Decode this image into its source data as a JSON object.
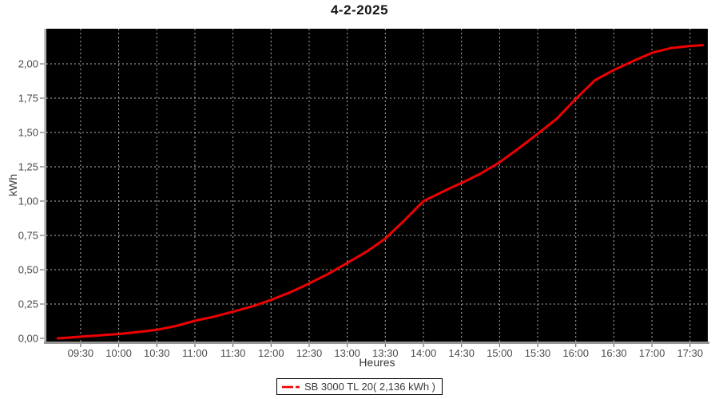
{
  "title": "4-2-2025",
  "colors": {
    "series": "#ee0000",
    "plot_background": "#000000",
    "grid": "#b0b0b0",
    "axis_line": "#979797",
    "tick_mark": "#555555",
    "tick_label": "#4a4a4a",
    "text": "#3a3a3a",
    "title_color": "#151515",
    "page_background": "#ffffff"
  },
  "legend": {
    "label": "SB 3000 TL 20( 2,136 kWh )",
    "total_kwh_display": "2,136 kWh"
  },
  "chart_data": {
    "type": "line",
    "title": "4-2-2025",
    "xlabel": "Heures",
    "ylabel": "kWh",
    "grid": true,
    "legend_position": "bottom",
    "plot_background": "black",
    "xlim_time": [
      "09:03",
      "17:44"
    ],
    "ylim": [
      -0.02,
      2.26
    ],
    "x_ticks": [
      "09:30",
      "10:00",
      "10:30",
      "11:00",
      "11:30",
      "12:00",
      "12:30",
      "13:00",
      "13:30",
      "14:00",
      "14:30",
      "15:00",
      "15:30",
      "16:00",
      "16:30",
      "17:00",
      "17:30"
    ],
    "y_ticks": [
      {
        "label": "0,00",
        "value": 0
      },
      {
        "label": "0,25",
        "value": 0.25
      },
      {
        "label": "0,50",
        "value": 0.5
      },
      {
        "label": "0,75",
        "value": 0.75
      },
      {
        "label": "1,00",
        "value": 1
      },
      {
        "label": "1,25",
        "value": 1.25
      },
      {
        "label": "1,50",
        "value": 1.5
      },
      {
        "label": "1,75",
        "value": 1.75
      },
      {
        "label": "2,00",
        "value": 2
      }
    ],
    "series": [
      {
        "name": "SB 3000 TL 20( 2,136 kWh )",
        "final_value_kwh": 2.136,
        "points": [
          [
            "09:12",
            0
          ],
          [
            "09:20",
            0.005
          ],
          [
            "09:30",
            0.012
          ],
          [
            "09:45",
            0.022
          ],
          [
            "10:00",
            0.032
          ],
          [
            "10:15",
            0.046
          ],
          [
            "10:30",
            0.062
          ],
          [
            "10:45",
            0.09
          ],
          [
            "11:00",
            0.128
          ],
          [
            "11:15",
            0.158
          ],
          [
            "11:30",
            0.194
          ],
          [
            "11:45",
            0.232
          ],
          [
            "12:00",
            0.28
          ],
          [
            "12:15",
            0.335
          ],
          [
            "12:30",
            0.4
          ],
          [
            "12:45",
            0.47
          ],
          [
            "13:00",
            0.55
          ],
          [
            "13:15",
            0.63
          ],
          [
            "13:30",
            0.727
          ],
          [
            "13:45",
            0.86
          ],
          [
            "14:00",
            1.0
          ],
          [
            "14:10",
            1.045
          ],
          [
            "14:20",
            1.09
          ],
          [
            "14:30",
            1.132
          ],
          [
            "14:45",
            1.2
          ],
          [
            "15:00",
            1.283
          ],
          [
            "15:15",
            1.384
          ],
          [
            "15:30",
            1.49
          ],
          [
            "15:45",
            1.6
          ],
          [
            "16:00",
            1.745
          ],
          [
            "16:15",
            1.88
          ],
          [
            "16:30",
            1.955
          ],
          [
            "16:45",
            2.02
          ],
          [
            "17:00",
            2.08
          ],
          [
            "17:15",
            2.115
          ],
          [
            "17:30",
            2.13
          ],
          [
            "17:40",
            2.136
          ]
        ]
      }
    ]
  }
}
